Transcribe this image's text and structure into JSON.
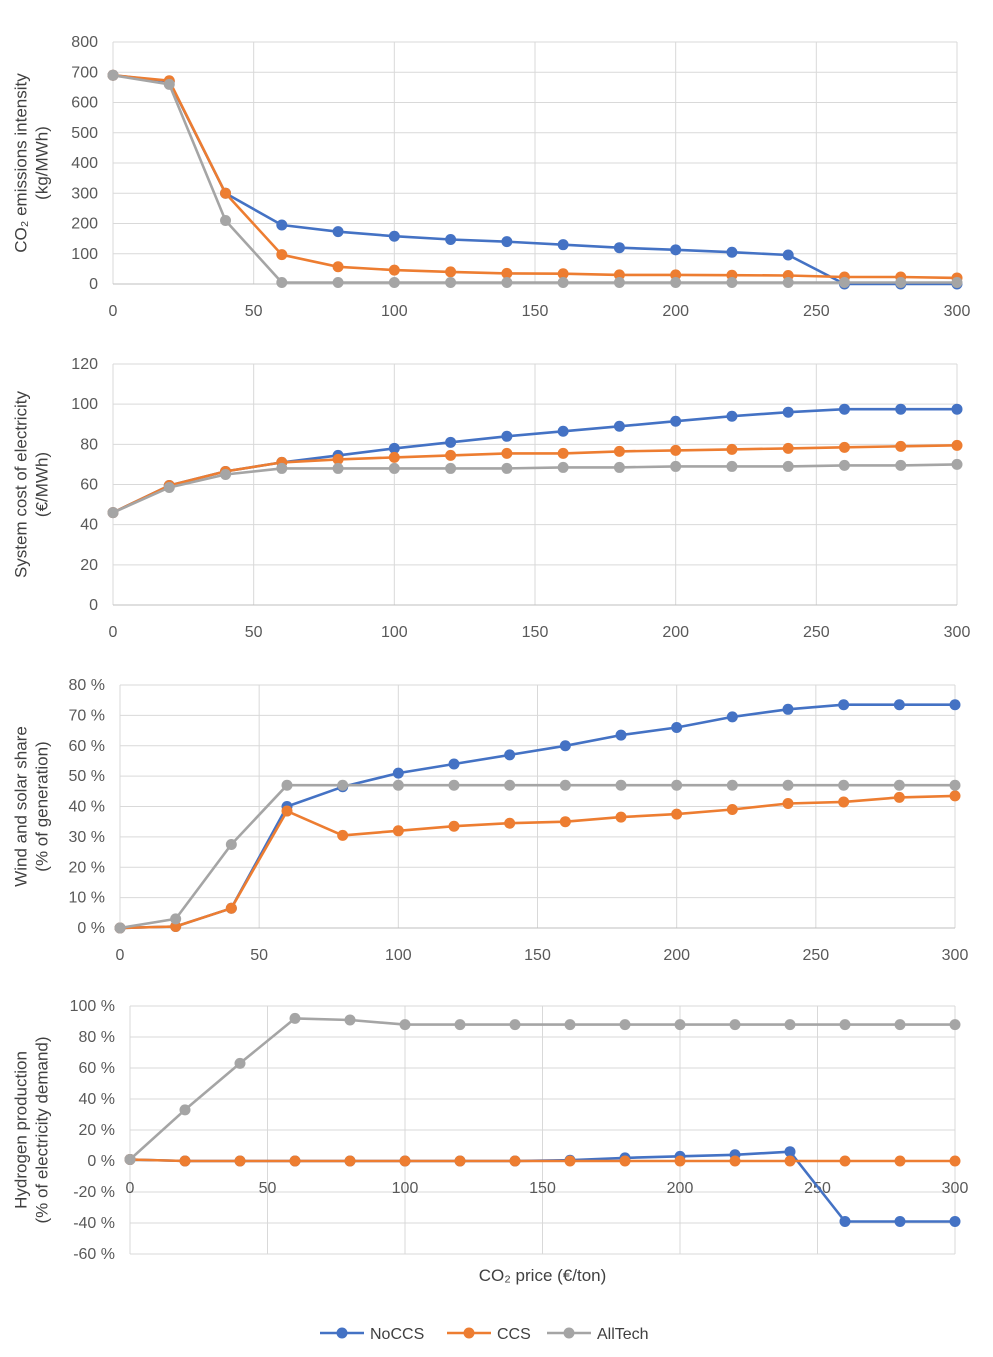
{
  "colors": {
    "NoCCS": "#4472C4",
    "CCS": "#ED7D31",
    "AllTech": "#A5A5A5",
    "grid": "#D9D9D9"
  },
  "legend": [
    "NoCCS",
    "CCS",
    "AllTech"
  ],
  "chart_data": [
    {
      "type": "line",
      "ylabel_lines": [
        "CO₂ emissions intensity",
        "(kg/MWh)"
      ],
      "x": [
        0,
        20,
        40,
        60,
        80,
        100,
        120,
        140,
        160,
        180,
        200,
        220,
        240,
        260,
        280,
        300
      ],
      "xlim": [
        0,
        300
      ],
      "xticks": [
        0,
        50,
        100,
        150,
        200,
        250,
        300
      ],
      "ylim": [
        0,
        800
      ],
      "yticks": [
        0,
        100,
        200,
        300,
        400,
        500,
        600,
        700,
        800
      ],
      "ytick_labels": [
        "0",
        "100",
        "200",
        "300",
        "400",
        "500",
        "600",
        "700",
        "800"
      ],
      "xaxis_at": 0,
      "grid": true,
      "series": [
        {
          "name": "NoCCS",
          "values": [
            690,
            670,
            300,
            195,
            173,
            158,
            147,
            140,
            130,
            120,
            113,
            105,
            96,
            0,
            0,
            0
          ]
        },
        {
          "name": "CCS",
          "values": [
            690,
            672,
            300,
            97,
            57,
            46,
            40,
            35,
            34,
            30,
            30,
            29,
            28,
            23,
            23,
            20
          ]
        },
        {
          "name": "AllTech",
          "values": [
            690,
            660,
            210,
            5,
            5,
            5,
            5,
            5,
            5,
            5,
            5,
            5,
            5,
            5,
            5,
            5
          ]
        }
      ]
    },
    {
      "type": "line",
      "ylabel_lines": [
        "System cost of electricity",
        "(€/MWh)"
      ],
      "x": [
        0,
        20,
        40,
        60,
        80,
        100,
        120,
        140,
        160,
        180,
        200,
        220,
        240,
        260,
        280,
        300
      ],
      "xlim": [
        0,
        300
      ],
      "xticks": [
        0,
        50,
        100,
        150,
        200,
        250,
        300
      ],
      "ylim": [
        0,
        120
      ],
      "yticks": [
        0,
        20,
        40,
        60,
        80,
        100,
        120
      ],
      "ytick_labels": [
        "0",
        "20",
        "40",
        "60",
        "80",
        "100",
        "120"
      ],
      "xaxis_at": 0,
      "grid": true,
      "series": [
        {
          "name": "NoCCS",
          "values": [
            46,
            59.5,
            66.5,
            71,
            74.5,
            78,
            81,
            84,
            86.5,
            89,
            91.5,
            94,
            96,
            97.5,
            97.5,
            97.5
          ]
        },
        {
          "name": "CCS",
          "values": [
            46,
            59.5,
            66.5,
            71,
            72.5,
            73.5,
            74.5,
            75.5,
            75.5,
            76.5,
            77,
            77.5,
            78,
            78.5,
            79,
            79.5
          ]
        },
        {
          "name": "AllTech",
          "values": [
            46,
            58.5,
            65,
            68,
            68,
            68,
            68,
            68,
            68.5,
            68.5,
            69,
            69,
            69,
            69.5,
            69.5,
            70
          ]
        }
      ]
    },
    {
      "type": "line",
      "ylabel_lines": [
        "Wind and solar share",
        "(% of generation)"
      ],
      "x": [
        0,
        20,
        40,
        60,
        80,
        100,
        120,
        140,
        160,
        180,
        200,
        220,
        240,
        260,
        280,
        300
      ],
      "xlim": [
        0,
        300
      ],
      "xticks": [
        0,
        50,
        100,
        150,
        200,
        250,
        300
      ],
      "ylim": [
        0,
        80
      ],
      "yticks": [
        0,
        10,
        20,
        30,
        40,
        50,
        60,
        70,
        80
      ],
      "ytick_labels": [
        "0 %",
        "10 %",
        "20 %",
        "30 %",
        "40 %",
        "50 %",
        "60 %",
        "70 %",
        "80 %"
      ],
      "xaxis_at": 0,
      "grid": true,
      "series": [
        {
          "name": "NoCCS",
          "values": [
            0,
            0.5,
            6.5,
            40,
            46.5,
            51,
            54,
            57,
            60,
            63.5,
            66,
            69.5,
            72,
            73.5,
            73.5,
            73.5
          ]
        },
        {
          "name": "CCS",
          "values": [
            0,
            0.5,
            6.5,
            38.5,
            30.5,
            32,
            33.5,
            34.5,
            35,
            36.5,
            37.5,
            39,
            41,
            41.5,
            43,
            43.5
          ]
        },
        {
          "name": "AllTech",
          "values": [
            0,
            3,
            27.5,
            47,
            47,
            47,
            47,
            47,
            47,
            47,
            47,
            47,
            47,
            47,
            47,
            47
          ]
        }
      ]
    },
    {
      "type": "line",
      "ylabel_lines": [
        "Hydrogen production",
        "(% of electricity demand)"
      ],
      "xlabel": "CO₂ price (€/ton)",
      "x": [
        0,
        20,
        40,
        60,
        80,
        100,
        120,
        140,
        160,
        180,
        200,
        220,
        240,
        260,
        280,
        300
      ],
      "xlim": [
        0,
        300
      ],
      "xticks": [
        0,
        50,
        100,
        150,
        200,
        250,
        300
      ],
      "ylim": [
        -60,
        100
      ],
      "yticks": [
        -60,
        -40,
        -20,
        0,
        20,
        40,
        60,
        80,
        100
      ],
      "ytick_labels": [
        "-60 %",
        "-40 %",
        "-20 %",
        "0 %",
        "20 %",
        "40 %",
        "60 %",
        "80 %",
        "100 %"
      ],
      "xaxis_at": 0,
      "grid": true,
      "series": [
        {
          "name": "NoCCS",
          "values": [
            1,
            0,
            0,
            0,
            0,
            0,
            0,
            0,
            0.5,
            2,
            3,
            4,
            6,
            -39,
            -39,
            -39
          ]
        },
        {
          "name": "CCS",
          "values": [
            1,
            0,
            0,
            0,
            0,
            0,
            0,
            0,
            0,
            0,
            0,
            0,
            0,
            0,
            0,
            0
          ]
        },
        {
          "name": "AllTech",
          "values": [
            1,
            33,
            63,
            92,
            91,
            88,
            88,
            88,
            88,
            88,
            88,
            88,
            88,
            88,
            88,
            88
          ]
        }
      ]
    }
  ]
}
